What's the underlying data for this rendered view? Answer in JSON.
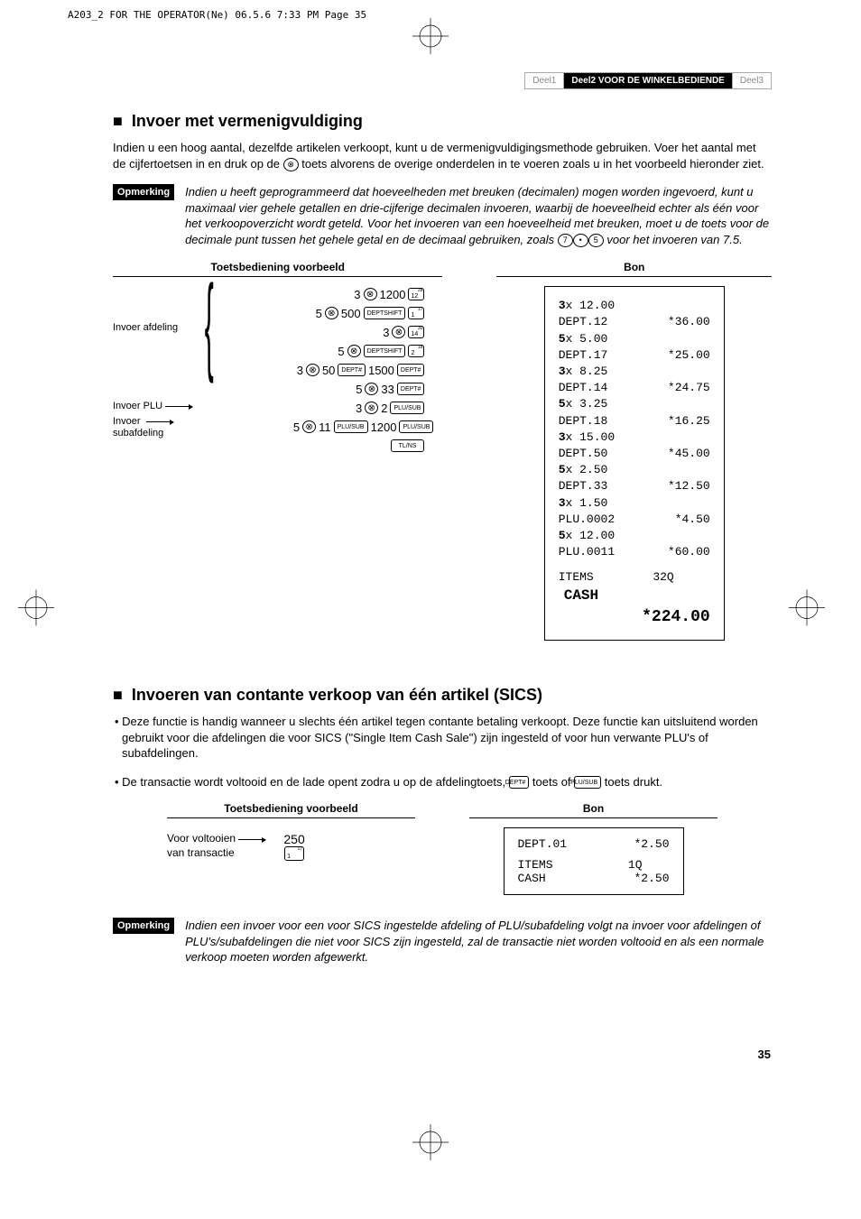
{
  "header_strip": "A203_2 FOR THE OPERATOR(Ne)  06.5.6 7:33 PM  Page 35",
  "tabs": {
    "part1": "Deel1",
    "part2_prefix": "Deel2",
    "part2_label": "VOOR DE WINKELBEDIENDE",
    "part3": "Deel3"
  },
  "section1": {
    "heading": "Invoer met vermenigvuldiging",
    "body": "Indien u een hoog aantal, dezelfde artikelen verkoopt, kunt u de vermenigvuldigingsmethode gebruiken. Voer het aantal met de cijfertoetsen in en druk op de ⊗ toets alvorens de overige onderdelen in te voeren zoals u in het voorbeeld hieronder ziet.",
    "note_label": "Opmerking",
    "note": "Indien u heeft geprogrammeerd dat hoeveelheden met breuken (decimalen) mogen worden ingevoerd, kunt u maximaal vier gehele getallen en drie-cijferige decimalen invoeren, waarbij de hoeveelheid echter als één voor het verkoopoverzicht wordt geteld. Voor het invoeren van een hoeveelheid met breuken, moet u de toets voor de decimale punt tussen het gehele getal en de decimaal gebruiken, zoals 7 · 5 voor het invoeren van 7.5.",
    "col_header_left": "Toetsbediening voorbeeld",
    "col_header_right": "Bon",
    "labels": {
      "dept": "Invoer afdeling",
      "plu": "Invoer PLU",
      "sub": "Invoer subafdeling"
    },
    "keylines": [
      {
        "pre": "3",
        "key": "⊗",
        "post": "1200",
        "btn": "12",
        "sup": "28"
      },
      {
        "pre": "5",
        "key": "⊗",
        "post": "500",
        "btn_txt": "DEPTSHIFT",
        "btn2": "1",
        "sup2": "17"
      },
      {
        "pre": "3",
        "key": "⊗",
        "post": "",
        "btn2": "14",
        "sup2": "30"
      },
      {
        "pre": "5",
        "key": "⊗",
        "post": "",
        "btn_txt": "DEPTSHIFT",
        "btn2": "2",
        "sup2": "18"
      },
      {
        "pre": "3",
        "key": "⊗",
        "post": "50",
        "btn_txt": "DEPT#",
        "post2": "1500",
        "btn_txt2": "DEPT#"
      },
      {
        "pre": "5",
        "key": "⊗",
        "post": "33",
        "btn_txt": "DEPT#"
      },
      {
        "pre": "3",
        "key": "⊗",
        "post": "2",
        "btn_txt": "PLU/SUB"
      },
      {
        "pre": "5",
        "key": "⊗",
        "post": "11",
        "btn_txt": "PLU/SUB",
        "post2": "1200",
        "btn_txt2": "PLU/SUB"
      },
      {
        "btn_txt": "TL/NS"
      }
    ],
    "receipt": [
      {
        "l": "3x 12.00",
        "r": "",
        "b": true
      },
      {
        "l": "DEPT.12",
        "r": "*36.00"
      },
      {
        "l": "5x 5.00",
        "r": "",
        "b": true
      },
      {
        "l": "DEPT.17",
        "r": "*25.00"
      },
      {
        "l": "3x 8.25",
        "r": "",
        "b": true
      },
      {
        "l": "DEPT.14",
        "r": "*24.75"
      },
      {
        "l": "5x 3.25",
        "r": "",
        "b": true
      },
      {
        "l": "DEPT.18",
        "r": "*16.25"
      },
      {
        "l": "3x 15.00",
        "r": "",
        "b": true
      },
      {
        "l": "DEPT.50",
        "r": "*45.00"
      },
      {
        "l": "5x 2.50",
        "r": "",
        "b": true
      },
      {
        "l": "DEPT.33",
        "r": "*12.50"
      },
      {
        "l": "3x 1.50",
        "r": "",
        "b": true
      },
      {
        "l": "PLU.0002",
        "r": "*4.50"
      },
      {
        "l": "5x 12.00",
        "r": "",
        "b": true
      },
      {
        "l": "PLU.0011",
        "r": "*60.00"
      }
    ],
    "receipt_items": {
      "l": "ITEMS",
      "r": "32Q"
    },
    "receipt_cash": "CASH",
    "receipt_total": "*224.00"
  },
  "section2": {
    "heading": "Invoeren van contante verkoop van één artikel (SICS)",
    "bullets": [
      "Deze functie is handig wanneer u slechts één artikel tegen contante betaling verkoopt. Deze functie kan uitsluitend worden gebruikt voor die afdelingen die voor SICS (\"Single Item Cash Sale\") zijn ingesteld of voor hun verwante PLU's of subafdelingen.",
      "De transactie wordt voltooid en de lade opent zodra u op de afdelingtoets, DEPT# toets of PLU/SUB toets drukt."
    ],
    "col_header_left": "Toetsbediening voorbeeld",
    "col_header_right": "Bon",
    "label_left": "Voor voltooien van transactie",
    "key_value": "250",
    "key_btn": "1",
    "key_btn_sup": "17",
    "receipt": [
      {
        "l": "DEPT.01",
        "r": "*2.50"
      }
    ],
    "receipt_items": {
      "l": "ITEMS",
      "r": "1Q"
    },
    "receipt_cash": "CASH",
    "receipt_total": "*2.50",
    "note_label": "Opmerking",
    "note": "Indien een invoer voor een voor SICS ingestelde afdeling of PLU/subafdeling volgt na invoer voor afdelingen of PLU's/subafdelingen die niet voor SICS zijn ingesteld, zal de transactie niet worden voltooid en als een normale verkoop moeten worden afgewerkt."
  },
  "page_number": "35"
}
